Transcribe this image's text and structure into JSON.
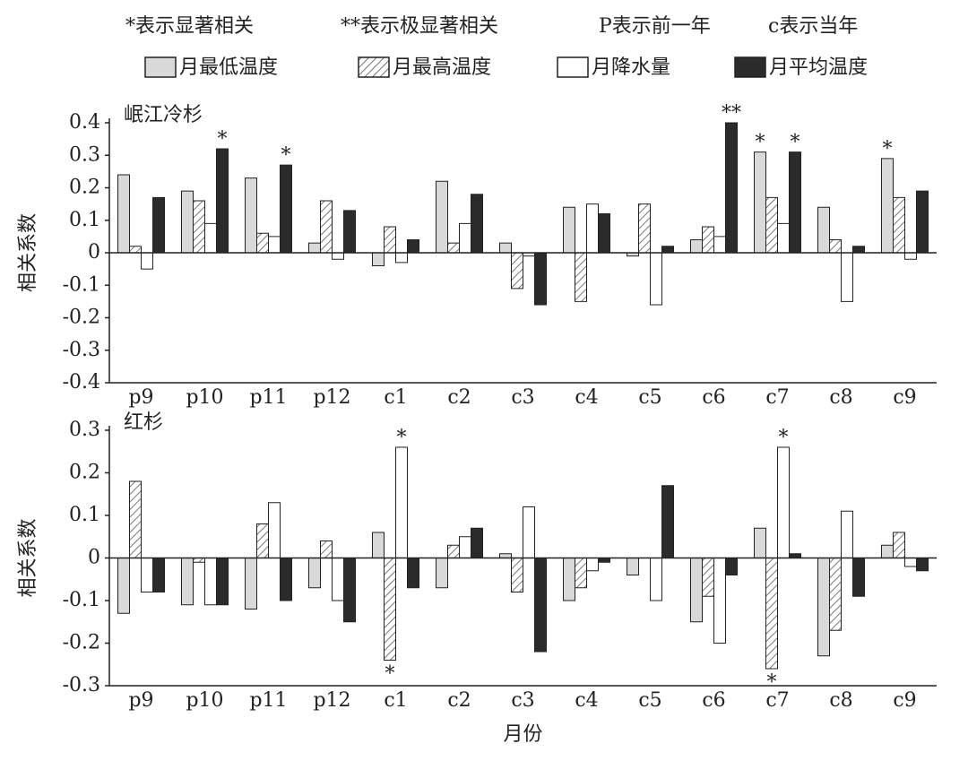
{
  "notes": [
    "*表示显著相关",
    "**表示极显著相关",
    "P表示前一年",
    "c表示当年"
  ],
  "chart_data": [
    {
      "type": "bar",
      "title": "岷江冷杉",
      "y_label": "相关系数",
      "categories": [
        "p9",
        "p10",
        "p11",
        "p12",
        "c1",
        "c2",
        "c3",
        "c4",
        "c5",
        "c6",
        "c7",
        "c8",
        "c9"
      ],
      "series": [
        {
          "name": "月最低温度",
          "color": "#d9d9d9",
          "values": [
            0.24,
            0.19,
            0.23,
            0.03,
            -0.04,
            0.22,
            0.03,
            0.14,
            -0.01,
            0.04,
            0.31,
            0.14,
            0.29
          ]
        },
        {
          "name": "月最高温度",
          "color": "#777777",
          "pattern": "hatch",
          "values": [
            0.02,
            0.16,
            0.06,
            0.16,
            0.08,
            0.03,
            -0.11,
            -0.15,
            0.15,
            0.08,
            0.17,
            0.04,
            0.17
          ]
        },
        {
          "name": "月降水量",
          "color": "#ffffff",
          "values": [
            -0.05,
            0.09,
            0.05,
            -0.02,
            -0.03,
            0.09,
            -0.01,
            0.15,
            -0.16,
            0.05,
            0.09,
            -0.15,
            -0.02
          ]
        },
        {
          "name": "月平均温度",
          "color": "#2b2b2b",
          "values": [
            0.17,
            0.32,
            0.27,
            0.13,
            0.04,
            0.18,
            -0.16,
            0.12,
            0.02,
            0.4,
            0.31,
            0.02,
            0.19
          ]
        }
      ],
      "annotations": [
        {
          "x": "p10",
          "series": 3,
          "text": "*"
        },
        {
          "x": "p11",
          "series": 3,
          "text": "*"
        },
        {
          "x": "c6",
          "series": 3,
          "text": "**"
        },
        {
          "x": "c7",
          "series": 0,
          "text": "*"
        },
        {
          "x": "c7",
          "series": 3,
          "text": "*"
        },
        {
          "x": "c9",
          "series": 0,
          "text": "*"
        }
      ],
      "ylim": [
        -0.4,
        0.4
      ],
      "yticks": [
        0.4,
        0.3,
        0.2,
        0.1,
        0,
        -0.1,
        -0.2,
        -0.3,
        -0.4
      ]
    },
    {
      "type": "bar",
      "title": "红杉",
      "y_label": "相关系数",
      "x_label": "月份",
      "categories": [
        "p9",
        "p10",
        "p11",
        "p12",
        "c1",
        "c2",
        "c3",
        "c4",
        "c5",
        "c6",
        "c7",
        "c8",
        "c9"
      ],
      "series": [
        {
          "color": "#d9d9d9",
          "values": [
            -0.13,
            -0.11,
            -0.12,
            -0.07,
            0.06,
            -0.07,
            0.01,
            -0.1,
            -0.04,
            -0.15,
            0.07,
            -0.23,
            0.03
          ]
        },
        {
          "color": "#777777",
          "pattern": "hatch",
          "values": [
            0.18,
            -0.01,
            0.08,
            0.04,
            -0.24,
            0.03,
            -0.08,
            -0.07,
            0,
            -0.09,
            -0.26,
            -0.17,
            0.06
          ]
        },
        {
          "color": "#ffffff",
          "values": [
            -0.08,
            -0.11,
            0.13,
            -0.1,
            0.26,
            0.05,
            0.12,
            -0.03,
            -0.1,
            -0.2,
            0.26,
            0.11,
            -0.02
          ]
        },
        {
          "color": "#2b2b2b",
          "values": [
            -0.08,
            -0.11,
            -0.1,
            -0.15,
            -0.07,
            0.07,
            -0.22,
            -0.01,
            0.17,
            -0.04,
            0.01,
            -0.09,
            -0.03
          ]
        }
      ],
      "annotations": [
        {
          "x": "c1",
          "series": 2,
          "text": "*"
        },
        {
          "x": "c1",
          "series": 1,
          "text": "*"
        },
        {
          "x": "c7",
          "series": 2,
          "text": "*"
        },
        {
          "x": "c7",
          "series": 1,
          "text": "*"
        }
      ],
      "ylim": [
        -0.3,
        0.3
      ],
      "yticks": [
        0.3,
        0.2,
        0.1,
        0,
        -0.1,
        -0.2,
        -0.3
      ]
    }
  ]
}
